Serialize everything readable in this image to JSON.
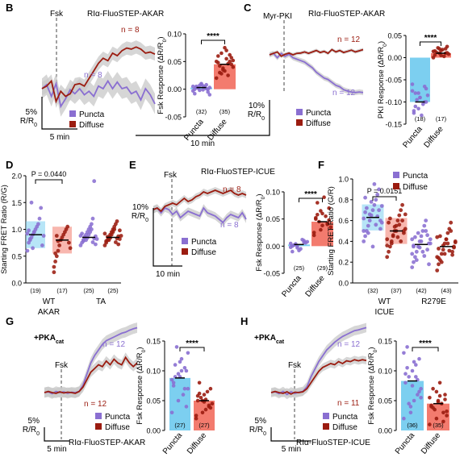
{
  "colors": {
    "puncta": "#8a6fd1",
    "diffuse": "#9b1c10",
    "puncta_bar": "#7ccff0",
    "diffuse_bar": "#f37b6e",
    "sem": "#c8c8c8"
  },
  "legend": {
    "puncta": "Puncta",
    "diffuse": "Diffuse"
  },
  "chart_data": [
    {
      "panel": "B",
      "type": "line",
      "title": "RIα-FluoSTEP-AKAR",
      "drug": "Fsk",
      "scale_x": "5 min",
      "scale_y": [
        "5%",
        "R/R0"
      ],
      "n_labels": {
        "diffuse": "n = 8",
        "puncta": "n = 8"
      },
      "series": [
        {
          "name": "Puncta",
          "values": [
            0,
            0.8,
            -1.5,
            1.0,
            -3.5,
            -2.0,
            -0.2,
            -1.0,
            0.0,
            -1.2,
            -0.5,
            -1.5,
            0.5,
            0.0,
            1.5,
            0.0,
            1.3,
            0.0,
            0.3,
            -1.0,
            -0.5,
            -2.2,
            0.0,
            -1.2,
            -3.0
          ],
          "sem": 2.0
        },
        {
          "name": "Diffuse",
          "values": [
            0,
            0.5,
            1.5,
            -2.5,
            -0.5,
            -1.5,
            -1.0,
            0.8,
            1.0,
            0.5,
            2.0,
            3.5,
            5.0,
            6.0,
            5.5,
            7.0,
            6.5,
            7.5,
            8.0,
            7.8,
            8.2,
            7.8,
            7.0,
            7.2,
            6.8
          ],
          "sem": 1.3
        }
      ]
    },
    {
      "panel": "B",
      "type": "bar",
      "ylabel": "Fsk Response (ΔR/R0)",
      "yticks": [
        "0.10",
        "0.05",
        "0.00",
        "-0.05"
      ],
      "ylim": [
        -0.05,
        0.1
      ],
      "categories": [
        "Puncta",
        "Diffuse"
      ],
      "values": [
        0.003,
        0.045
      ],
      "counts": [
        "(32)",
        "(35)"
      ],
      "sig": "****",
      "points": [
        [
          0.005,
          -0.002,
          0.008,
          0.0,
          0.01,
          -0.005,
          0.003,
          0.006,
          -0.01,
          0.002,
          0.004,
          -0.003,
          0.007,
          0.001,
          -0.008,
          0.009,
          0.0,
          0.005,
          -0.001,
          0.003
        ],
        [
          0.02,
          0.035,
          0.05,
          0.06,
          0.075,
          0.045,
          0.03,
          0.055,
          0.04,
          0.065,
          0.025,
          0.05,
          0.038,
          0.062,
          0.048,
          0.033,
          0.057,
          0.042,
          0.07,
          0.052,
          0.028,
          0.046
        ]
      ]
    },
    {
      "panel": "C",
      "type": "line",
      "title": "RIα-FluoSTEP-AKAR",
      "drug": "Myr-PKI",
      "scale_x": "10 min",
      "scale_y": [
        "10%",
        "R/R0"
      ],
      "n_labels": {
        "diffuse": "n = 12",
        "puncta": "n = 12"
      },
      "series": [
        {
          "name": "Puncta",
          "values": [
            0,
            0.5,
            -1.0,
            0.5,
            -0.5,
            0.2,
            -1.0,
            -1.5,
            -2.0,
            -2.5,
            -3.5,
            -4.5,
            -6.0,
            -7.0,
            -8.0,
            -8.5,
            -9.5,
            -10.5,
            -11.0,
            -12.0,
            -12.5,
            -12.8,
            -13.0,
            -12.8,
            -13.0
          ],
          "sem": 0.9
        },
        {
          "name": "Diffuse",
          "values": [
            0,
            0.5,
            1.0,
            -0.5,
            0.2,
            0.6,
            0.0,
            0.5,
            0.6,
            1.0,
            0.5,
            1.0,
            1.5,
            0.8,
            1.2,
            0.5,
            1.8,
            1.0,
            1.5,
            0.8,
            1.2,
            1.6,
            1.0,
            1.4,
            1.8
          ],
          "sem": 0.6
        }
      ]
    },
    {
      "panel": "C",
      "type": "bar",
      "ylabel": "PKI Response (ΔR/R0)",
      "yticks": [
        "0.05",
        "0.00",
        "-0.05",
        "-0.10",
        "-0.15"
      ],
      "ylim": [
        -0.15,
        0.05
      ],
      "categories": [
        "Puncta",
        "Diffuse"
      ],
      "values": [
        -0.1,
        0.01
      ],
      "counts": [
        "(18)",
        "(17)"
      ],
      "sig": "****",
      "points": [
        [
          -0.06,
          -0.08,
          -0.1,
          -0.12,
          -0.09,
          -0.07,
          -0.11,
          -0.13,
          -0.085,
          -0.095,
          -0.105,
          -0.075,
          -0.115,
          -0.065,
          -0.125,
          -0.09,
          -0.1,
          -0.08
        ],
        [
          0.0,
          0.01,
          0.02,
          0.015,
          0.005,
          0.025,
          0.012,
          0.018,
          0.008,
          0.022,
          0.003,
          0.014,
          0.02,
          0.01,
          0.006,
          0.016,
          0.011
        ]
      ]
    },
    {
      "panel": "D",
      "type": "scatter",
      "ylabel": "Starting FRET Ratio (R/G)",
      "yticks": [
        "2.0",
        "1.5",
        "1.0",
        "0.5",
        "0.0"
      ],
      "ylim": [
        0,
        2
      ],
      "pvalue": "P = 0.0440",
      "group_label": "AKAR",
      "categories": [
        "WT",
        "TA"
      ],
      "counts": [
        "(19)",
        "(17)",
        "(25)",
        "(25)"
      ],
      "means": [
        0.9,
        0.8,
        0.85,
        0.85
      ],
      "points": [
        [
          0.6,
          0.75,
          0.8,
          0.85,
          0.9,
          0.95,
          1.0,
          1.05,
          1.1,
          1.2,
          1.4,
          0.7,
          0.88,
          0.92,
          0.98,
          0.82,
          1.5,
          0.65,
          0.95
        ],
        [
          0.2,
          0.4,
          0.5,
          0.6,
          0.7,
          0.8,
          0.85,
          0.9,
          0.95,
          1.0,
          1.05,
          0.75,
          0.65,
          0.3,
          0.55,
          0.88,
          0.78
        ],
        [
          0.7,
          0.75,
          0.8,
          0.85,
          0.9,
          0.95,
          1.0,
          1.05,
          1.1,
          1.2,
          1.9,
          0.72,
          0.82,
          0.88,
          0.92,
          0.78,
          0.86,
          0.8,
          0.84,
          0.9,
          0.95,
          1.0,
          0.76,
          0.83,
          0.87
        ],
        [
          0.7,
          0.75,
          0.8,
          0.85,
          0.9,
          0.95,
          1.0,
          1.05,
          1.1,
          1.15,
          0.72,
          0.82,
          0.88,
          0.92,
          0.78,
          0.86,
          0.8,
          0.84,
          0.9,
          0.95,
          1.0,
          0.76,
          0.83,
          0.87,
          0.98
        ]
      ]
    },
    {
      "panel": "E",
      "type": "line",
      "title": "RIα-FluoSTEP-ICUE",
      "drug": "Fsk",
      "scale_x": "10 min",
      "scale_y": [
        "10%",
        "R/R0"
      ],
      "n_labels": {
        "diffuse": "n = 8",
        "puncta": "n = 8"
      },
      "series": [
        {
          "name": "Puncta",
          "values": [
            0,
            0.5,
            -1.0,
            0.5,
            0.0,
            -1.5,
            -0.5,
            -2.5,
            -1.5,
            -0.5,
            -1.0,
            -1.5,
            -2.0,
            0.5,
            -1.0,
            -1.5,
            -2.0,
            -3.0,
            -4.0,
            -2.5,
            -1.5,
            -2.0,
            -2.5,
            -1.0,
            -3.0
          ],
          "sem": 1.2
        },
        {
          "name": "Diffuse",
          "values": [
            0,
            0.5,
            -0.5,
            1.0,
            1.5,
            2.0,
            1.5,
            2.5,
            3.5,
            2.5,
            3.0,
            4.0,
            4.5,
            5.5,
            5.0,
            5.5,
            6.0,
            5.5,
            5.0,
            5.5,
            6.0,
            5.0,
            4.5,
            5.0,
            4.5
          ],
          "sem": 1.0
        }
      ]
    },
    {
      "panel": "E",
      "type": "bar",
      "ylabel": "Fsk Response (ΔR/R0)",
      "yticks": [
        "0.10",
        "0.05",
        "0.00",
        "-0.05"
      ],
      "ylim": [
        -0.05,
        0.1
      ],
      "categories": [
        "Puncta",
        "Diffuse"
      ],
      "values": [
        0.003,
        0.045
      ],
      "counts": [
        "(25)",
        "(29)"
      ],
      "sig": "****",
      "points": [
        [
          0.005,
          -0.003,
          0.01,
          0.0,
          -0.008,
          0.006,
          0.002,
          -0.005,
          0.008,
          0.004,
          0.012,
          -0.002,
          0.0,
          0.007,
          -0.01
        ],
        [
          0.02,
          0.03,
          0.04,
          0.05,
          0.06,
          0.07,
          0.08,
          0.09,
          0.035,
          0.045,
          0.055,
          0.025,
          0.065,
          0.042,
          0.052,
          0.038,
          0.048,
          0.058
        ]
      ]
    },
    {
      "panel": "F",
      "type": "scatter",
      "ylabel": "Starting FRET Ratio (G/R)",
      "yticks": [
        "1.0",
        "0.8",
        "0.6",
        "0.4",
        "0.2",
        "0.0"
      ],
      "ylim": [
        0,
        1
      ],
      "pvalue": "P = 0.0151",
      "group_label": "ICUE",
      "categories": [
        "WT",
        "R279E"
      ],
      "counts": [
        "(32)",
        "(37)",
        "(42)",
        "(43)"
      ],
      "means": [
        0.63,
        0.5,
        0.37,
        0.35
      ],
      "points": [
        [
          0.4,
          0.45,
          0.5,
          0.55,
          0.6,
          0.65,
          0.7,
          0.75,
          0.8,
          0.85,
          0.9,
          0.52,
          0.58,
          0.62,
          0.68,
          0.72,
          0.48,
          0.66,
          0.78,
          0.35,
          0.95,
          0.56,
          0.64,
          0.7,
          0.6,
          0.74,
          0.5,
          0.82
        ],
        [
          0.25,
          0.3,
          0.35,
          0.4,
          0.45,
          0.5,
          0.55,
          0.6,
          0.65,
          0.7,
          0.75,
          0.48,
          0.52,
          0.42,
          0.58,
          0.62,
          0.38,
          0.46,
          0.54,
          0.5,
          0.44,
          0.56,
          0.4,
          0.6,
          0.5,
          0.66,
          0.36
        ],
        [
          0.15,
          0.2,
          0.25,
          0.3,
          0.35,
          0.4,
          0.45,
          0.5,
          0.55,
          0.6,
          0.32,
          0.38,
          0.42,
          0.28,
          0.36,
          0.44,
          0.22,
          0.48,
          0.34,
          0.4,
          0.3,
          0.26,
          0.5,
          0.46,
          0.18,
          0.38,
          0.42,
          0.35
        ],
        [
          0.12,
          0.18,
          0.22,
          0.28,
          0.32,
          0.38,
          0.42,
          0.48,
          0.52,
          0.58,
          0.3,
          0.35,
          0.4,
          0.25,
          0.33,
          0.45,
          0.2,
          0.36,
          0.28,
          0.42,
          0.38,
          0.31,
          0.5,
          0.27,
          0.34,
          0.39,
          0.44,
          0.24
        ]
      ]
    },
    {
      "panel": "G",
      "type": "line",
      "title": "RIα-FluoSTEP-AKAR",
      "condition": "+PKAcat",
      "drug": "Fsk",
      "scale_x": "5 min",
      "scale_y": [
        "5%",
        "R/R0"
      ],
      "n_labels": {
        "puncta": "n = 12",
        "diffuse": "n = 12"
      },
      "series": [
        {
          "name": "Puncta",
          "values": [
            0,
            0.2,
            -0.3,
            0.3,
            0.0,
            0.2,
            -0.2,
            0.1,
            0.0,
            0.3,
            2.0,
            5.0,
            8.0,
            10.0,
            11.5,
            13.0,
            14.0,
            14.5,
            15.0,
            15.5,
            16.0,
            16.3,
            16.8,
            17.2,
            17.5
          ],
          "sem": 1.4
        },
        {
          "name": "Diffuse",
          "values": [
            0,
            0.3,
            0.0,
            -0.2,
            0.2,
            -0.1,
            0.1,
            0.0,
            -0.2,
            0.3,
            1.5,
            3.5,
            5.5,
            6.5,
            7.5,
            7.0,
            8.5,
            7.5,
            9.0,
            8.0,
            7.5,
            9.5,
            8.0,
            7.0,
            8.0
          ],
          "sem": 1.3
        }
      ]
    },
    {
      "panel": "G",
      "type": "bar",
      "ylabel": "Fsk Response (ΔR/R0)",
      "yticks": [
        "0.15",
        "0.10",
        "0.05",
        "0.00"
      ],
      "ylim": [
        0,
        0.15
      ],
      "categories": [
        "Puncta",
        "Diffuse"
      ],
      "values": [
        0.088,
        0.05
      ],
      "counts": [
        "(27)",
        "(27)"
      ],
      "sig": "****",
      "points": [
        [
          0.03,
          0.05,
          0.07,
          0.08,
          0.09,
          0.1,
          0.11,
          0.12,
          0.13,
          0.14,
          0.06,
          0.085,
          0.095,
          0.105,
          0.075,
          0.115,
          0.04,
          0.09,
          0.1,
          0.07
        ],
        [
          0.02,
          0.03,
          0.04,
          0.05,
          0.06,
          0.07,
          0.08,
          0.035,
          0.045,
          0.055,
          0.065,
          0.025,
          0.05,
          0.042,
          0.058,
          0.048,
          0.038,
          0.062,
          0.052
        ]
      ]
    },
    {
      "panel": "H",
      "type": "line",
      "title": "RIα-FluoSTEP-ICUE",
      "condition": "+PKAcat",
      "drug": "Fsk",
      "scale_x": "5 min",
      "scale_y": [
        "5%",
        "R/R0"
      ],
      "n_labels": {
        "puncta": "n = 12",
        "diffuse": "n = 11"
      },
      "series": [
        {
          "name": "Puncta",
          "values": [
            0,
            0.2,
            -0.3,
            0.3,
            -0.5,
            0.2,
            -0.2,
            0.1,
            0.3,
            1.5,
            4.0,
            6.0,
            8.0,
            9.5,
            11.0,
            12.0,
            13.0,
            13.8,
            14.5,
            15.0,
            15.5,
            16.0,
            16.2,
            16.5,
            16.8
          ],
          "sem": 1.2
        },
        {
          "name": "Diffuse",
          "values": [
            0,
            0.3,
            0.0,
            -0.2,
            0.2,
            -0.4,
            0.1,
            0.0,
            0.2,
            1.0,
            2.5,
            4.0,
            5.5,
            6.5,
            7.0,
            7.5,
            7.2,
            8.0,
            7.5,
            8.2,
            8.0,
            8.5,
            8.2,
            8.5,
            8.3
          ],
          "sem": 1.0
        }
      ]
    },
    {
      "panel": "H",
      "type": "bar",
      "ylabel": "Fsk Response (ΔR/R0)",
      "yticks": [
        "0.15",
        "0.10",
        "0.05",
        "0.00"
      ],
      "ylim": [
        0,
        0.15
      ],
      "categories": [
        "Puncta",
        "Diffuse"
      ],
      "values": [
        0.083,
        0.045
      ],
      "counts": [
        "(36)",
        "(35)"
      ],
      "sig": "****",
      "points": [
        [
          0.02,
          0.04,
          0.06,
          0.08,
          0.1,
          0.12,
          0.14,
          0.05,
          0.07,
          0.09,
          0.11,
          0.13,
          0.03,
          0.085,
          0.095,
          0.075,
          0.065,
          0.105,
          0.115,
          0.055,
          0.045,
          0.09
        ],
        [
          0.01,
          0.02,
          0.03,
          0.04,
          0.05,
          0.06,
          0.07,
          0.08,
          0.025,
          0.035,
          0.045,
          0.055,
          0.065,
          0.015,
          0.042,
          0.048,
          0.052,
          0.038,
          0.058,
          0.032
        ]
      ]
    }
  ],
  "panels": [
    "B",
    "C",
    "D",
    "E",
    "F",
    "G",
    "H"
  ]
}
